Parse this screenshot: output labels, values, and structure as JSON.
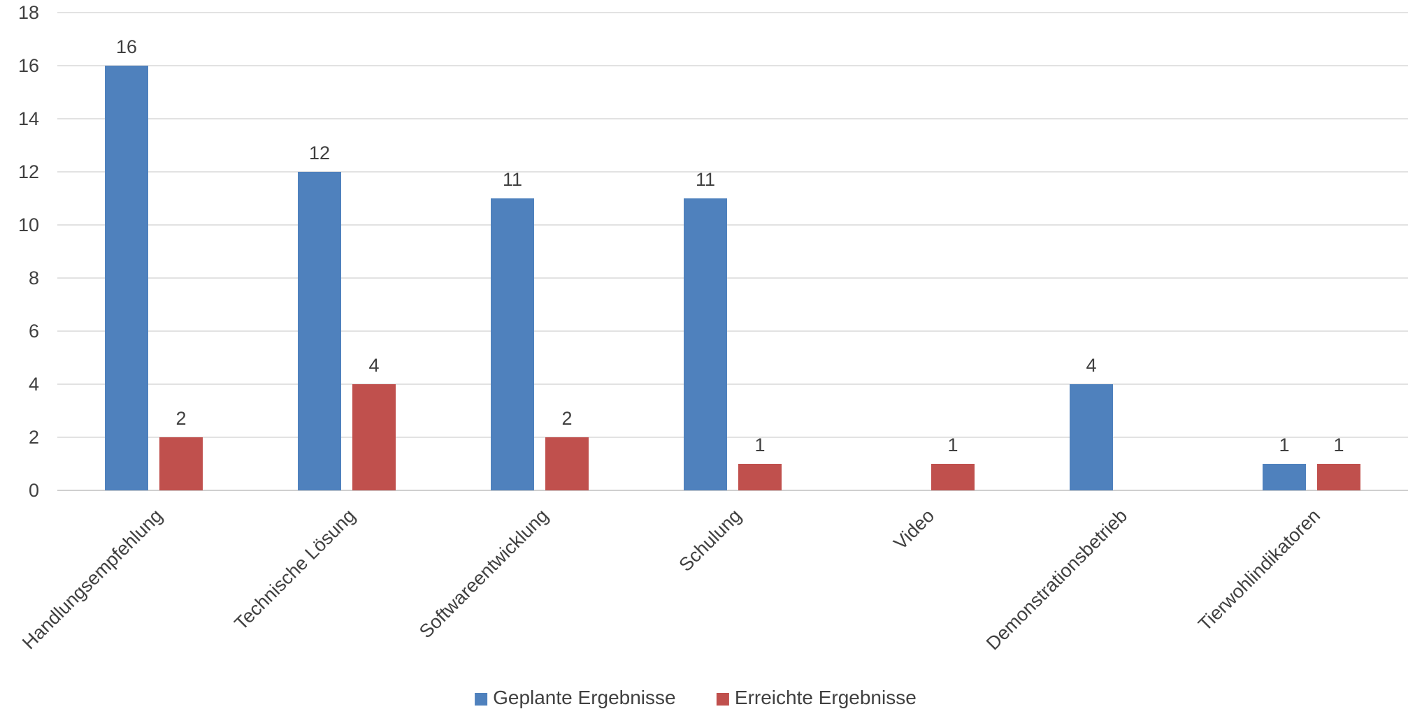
{
  "chart_data": {
    "type": "bar",
    "title": "",
    "xlabel": "",
    "ylabel": "",
    "ylim": [
      0,
      18
    ],
    "y_ticks": [
      0,
      2,
      4,
      6,
      8,
      10,
      12,
      14,
      16,
      18
    ],
    "grid": true,
    "legend_position": "bottom",
    "categories": [
      "Handlungsempfehlung",
      "Technische Lösung",
      "Softwareentwicklung",
      "Schulung",
      "Video",
      "Demonstrationsbetrieb",
      "Tierwohlindikatoren"
    ],
    "series": [
      {
        "name": "Geplante Ergebnisse",
        "color": "#4f81bd",
        "values": [
          16,
          12,
          11,
          11,
          null,
          4,
          1
        ]
      },
      {
        "name": "Erreichte Ergebnisse",
        "color": "#c0504d",
        "values": [
          2,
          4,
          2,
          1,
          1,
          null,
          1
        ]
      }
    ]
  }
}
